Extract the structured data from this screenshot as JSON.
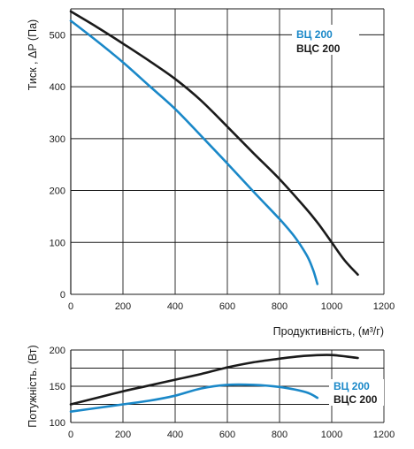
{
  "chart_data": [
    {
      "type": "line",
      "xlabel": "Продуктивність, (м³/г)",
      "ylabel": "Тиск , ΔP (Па)",
      "xlim": [
        0,
        1200
      ],
      "ylim": [
        0,
        550
      ],
      "xticks": [
        "0",
        "200",
        "400",
        "600",
        "800",
        "1000",
        "1200"
      ],
      "yticks": [
        "0",
        "100",
        "200",
        "300",
        "400",
        "500"
      ],
      "grid": true,
      "legend_position": "top-right",
      "series": [
        {
          "name": "ВЦ 200",
          "color": "#1a88c8",
          "x": [
            0,
            100,
            200,
            300,
            400,
            500,
            600,
            700,
            800,
            850,
            880,
            910,
            930,
            945
          ],
          "y": [
            527,
            488,
            447,
            402,
            357,
            305,
            252,
            198,
            145,
            116,
            95,
            70,
            45,
            20
          ]
        },
        {
          "name": "ВЦС 200",
          "color": "#1a1a1a",
          "x": [
            0,
            100,
            200,
            300,
            400,
            500,
            600,
            700,
            800,
            900,
            950,
            1000,
            1050,
            1100
          ],
          "y": [
            545,
            515,
            483,
            450,
            415,
            373,
            323,
            272,
            222,
            166,
            135,
            100,
            65,
            38
          ]
        }
      ]
    },
    {
      "type": "line",
      "xlabel": "",
      "ylabel": "Потужність. (Вт)",
      "xlim": [
        0,
        1200
      ],
      "ylim": [
        100,
        200
      ],
      "xticks": [
        "0",
        "200",
        "400",
        "600",
        "800",
        "1000",
        "1200"
      ],
      "yticks": [
        "100",
        "150",
        "200"
      ],
      "grid": true,
      "legend_position": "right",
      "series": [
        {
          "name": "ВЦ 200",
          "color": "#1a88c8",
          "x": [
            0,
            100,
            200,
            300,
            400,
            500,
            600,
            700,
            800,
            900,
            945
          ],
          "y": [
            115,
            120,
            125,
            130,
            137,
            147,
            152,
            152,
            149,
            142,
            134
          ]
        },
        {
          "name": "ВЦС 200",
          "color": "#1a1a1a",
          "x": [
            0,
            100,
            200,
            300,
            400,
            500,
            600,
            700,
            800,
            900,
            1000,
            1100
          ],
          "y": [
            125,
            134,
            143,
            151,
            159,
            167,
            176,
            183,
            188,
            192,
            193,
            189
          ]
        }
      ]
    }
  ]
}
